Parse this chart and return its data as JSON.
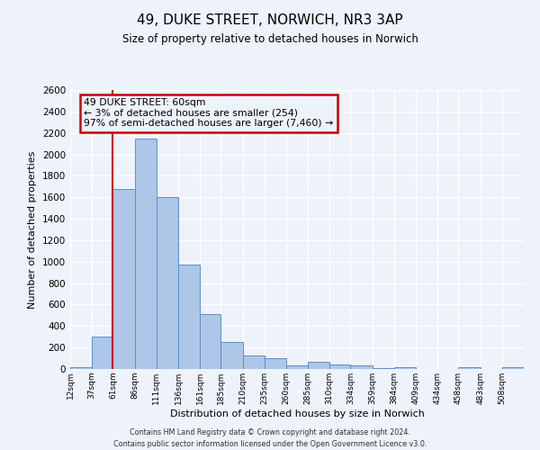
{
  "title": "49, DUKE STREET, NORWICH, NR3 3AP",
  "subtitle": "Size of property relative to detached houses in Norwich",
  "xlabel": "Distribution of detached houses by size in Norwich",
  "ylabel": "Number of detached properties",
  "bin_labels": [
    "12sqm",
    "37sqm",
    "61sqm",
    "86sqm",
    "111sqm",
    "136sqm",
    "161sqm",
    "185sqm",
    "210sqm",
    "235sqm",
    "260sqm",
    "285sqm",
    "310sqm",
    "334sqm",
    "359sqm",
    "384sqm",
    "409sqm",
    "434sqm",
    "458sqm",
    "483sqm",
    "508sqm"
  ],
  "bin_edges": [
    12,
    37,
    61,
    86,
    111,
    136,
    161,
    185,
    210,
    235,
    260,
    285,
    310,
    334,
    359,
    384,
    409,
    434,
    458,
    483,
    508
  ],
  "bar_values": [
    20,
    300,
    1680,
    2150,
    1600,
    975,
    510,
    255,
    130,
    100,
    30,
    65,
    40,
    35,
    10,
    20,
    0,
    0,
    20,
    0,
    15
  ],
  "bar_color": "#aec6e8",
  "bar_edge_color": "#5b8fc9",
  "background_color": "#eef2fb",
  "grid_color": "#ffffff",
  "property_line_x": 61,
  "property_line_color": "#cc0000",
  "annotation_line1": "49 DUKE STREET: 60sqm",
  "annotation_line2": "← 3% of detached houses are smaller (254)",
  "annotation_line3": "97% of semi-detached houses are larger (7,460) →",
  "annotation_box_color": "#cc0000",
  "ylim": [
    0,
    2600
  ],
  "yticks": [
    0,
    200,
    400,
    600,
    800,
    1000,
    1200,
    1400,
    1600,
    1800,
    2000,
    2200,
    2400,
    2600
  ],
  "footer_line1": "Contains HM Land Registry data © Crown copyright and database right 2024.",
  "footer_line2": "Contains public sector information licensed under the Open Government Licence v3.0."
}
